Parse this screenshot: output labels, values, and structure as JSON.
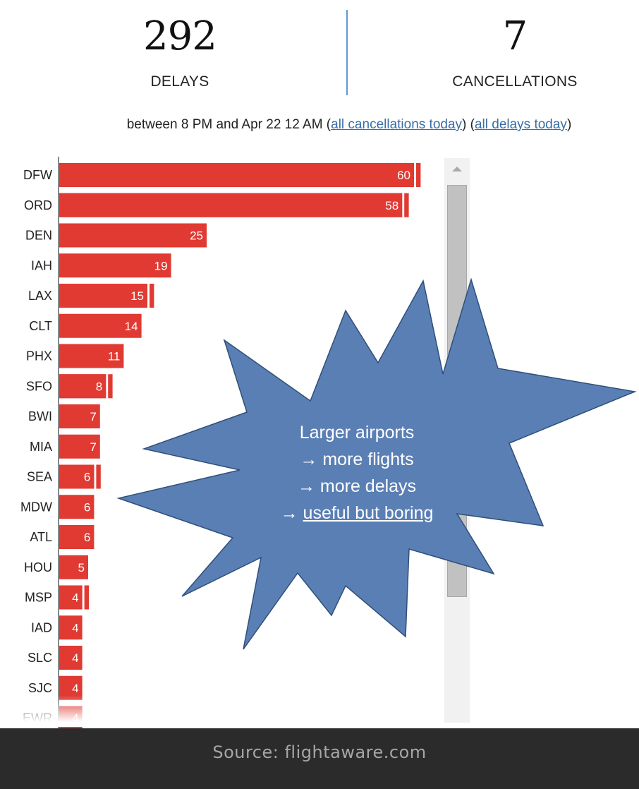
{
  "header": {
    "delays_value": "292",
    "delays_label": "DELAYS",
    "cancellations_value": "7",
    "cancellations_label": "CANCELLATIONS",
    "range_text": "between 8 PM and Apr 22 12 AM (",
    "link_cancellations": "all cancellations today",
    "between_links": ") (",
    "link_delays": "all delays today",
    "after_links": ")"
  },
  "chart_data": {
    "type": "bar",
    "orientation": "horizontal",
    "categories": [
      "DFW",
      "ORD",
      "DEN",
      "IAH",
      "LAX",
      "CLT",
      "PHX",
      "SFO",
      "BWI",
      "MIA",
      "SEA",
      "MDW",
      "ATL",
      "HOU",
      "MSP",
      "IAD",
      "SLC",
      "SJC",
      "EWR"
    ],
    "values": [
      60,
      58,
      25,
      19,
      15,
      14,
      11,
      8,
      7,
      7,
      6,
      6,
      6,
      5,
      4,
      4,
      4,
      4,
      4
    ],
    "secondary_values": [
      61,
      59,
      null,
      null,
      16,
      null,
      null,
      9,
      null,
      null,
      7,
      null,
      null,
      null,
      5,
      null,
      null,
      null,
      null
    ],
    "bar_color": "#e03a32",
    "secondary_color": "#e03a32",
    "label_color": "#ffffff",
    "title": "",
    "xlabel": "",
    "ylabel": ""
  },
  "callout": {
    "line1": "Larger airports",
    "line2": "→ more flights",
    "line3": "→ more delays",
    "line4_prefix": "→ ",
    "line4_underlined": "useful but boring",
    "fill_color": "#5a7fb4",
    "stroke_color": "#2f4f7a"
  },
  "scrollbar": {
    "up_icon": "triangle-up-icon"
  },
  "footer": {
    "text": "Source: flightaware.com"
  }
}
